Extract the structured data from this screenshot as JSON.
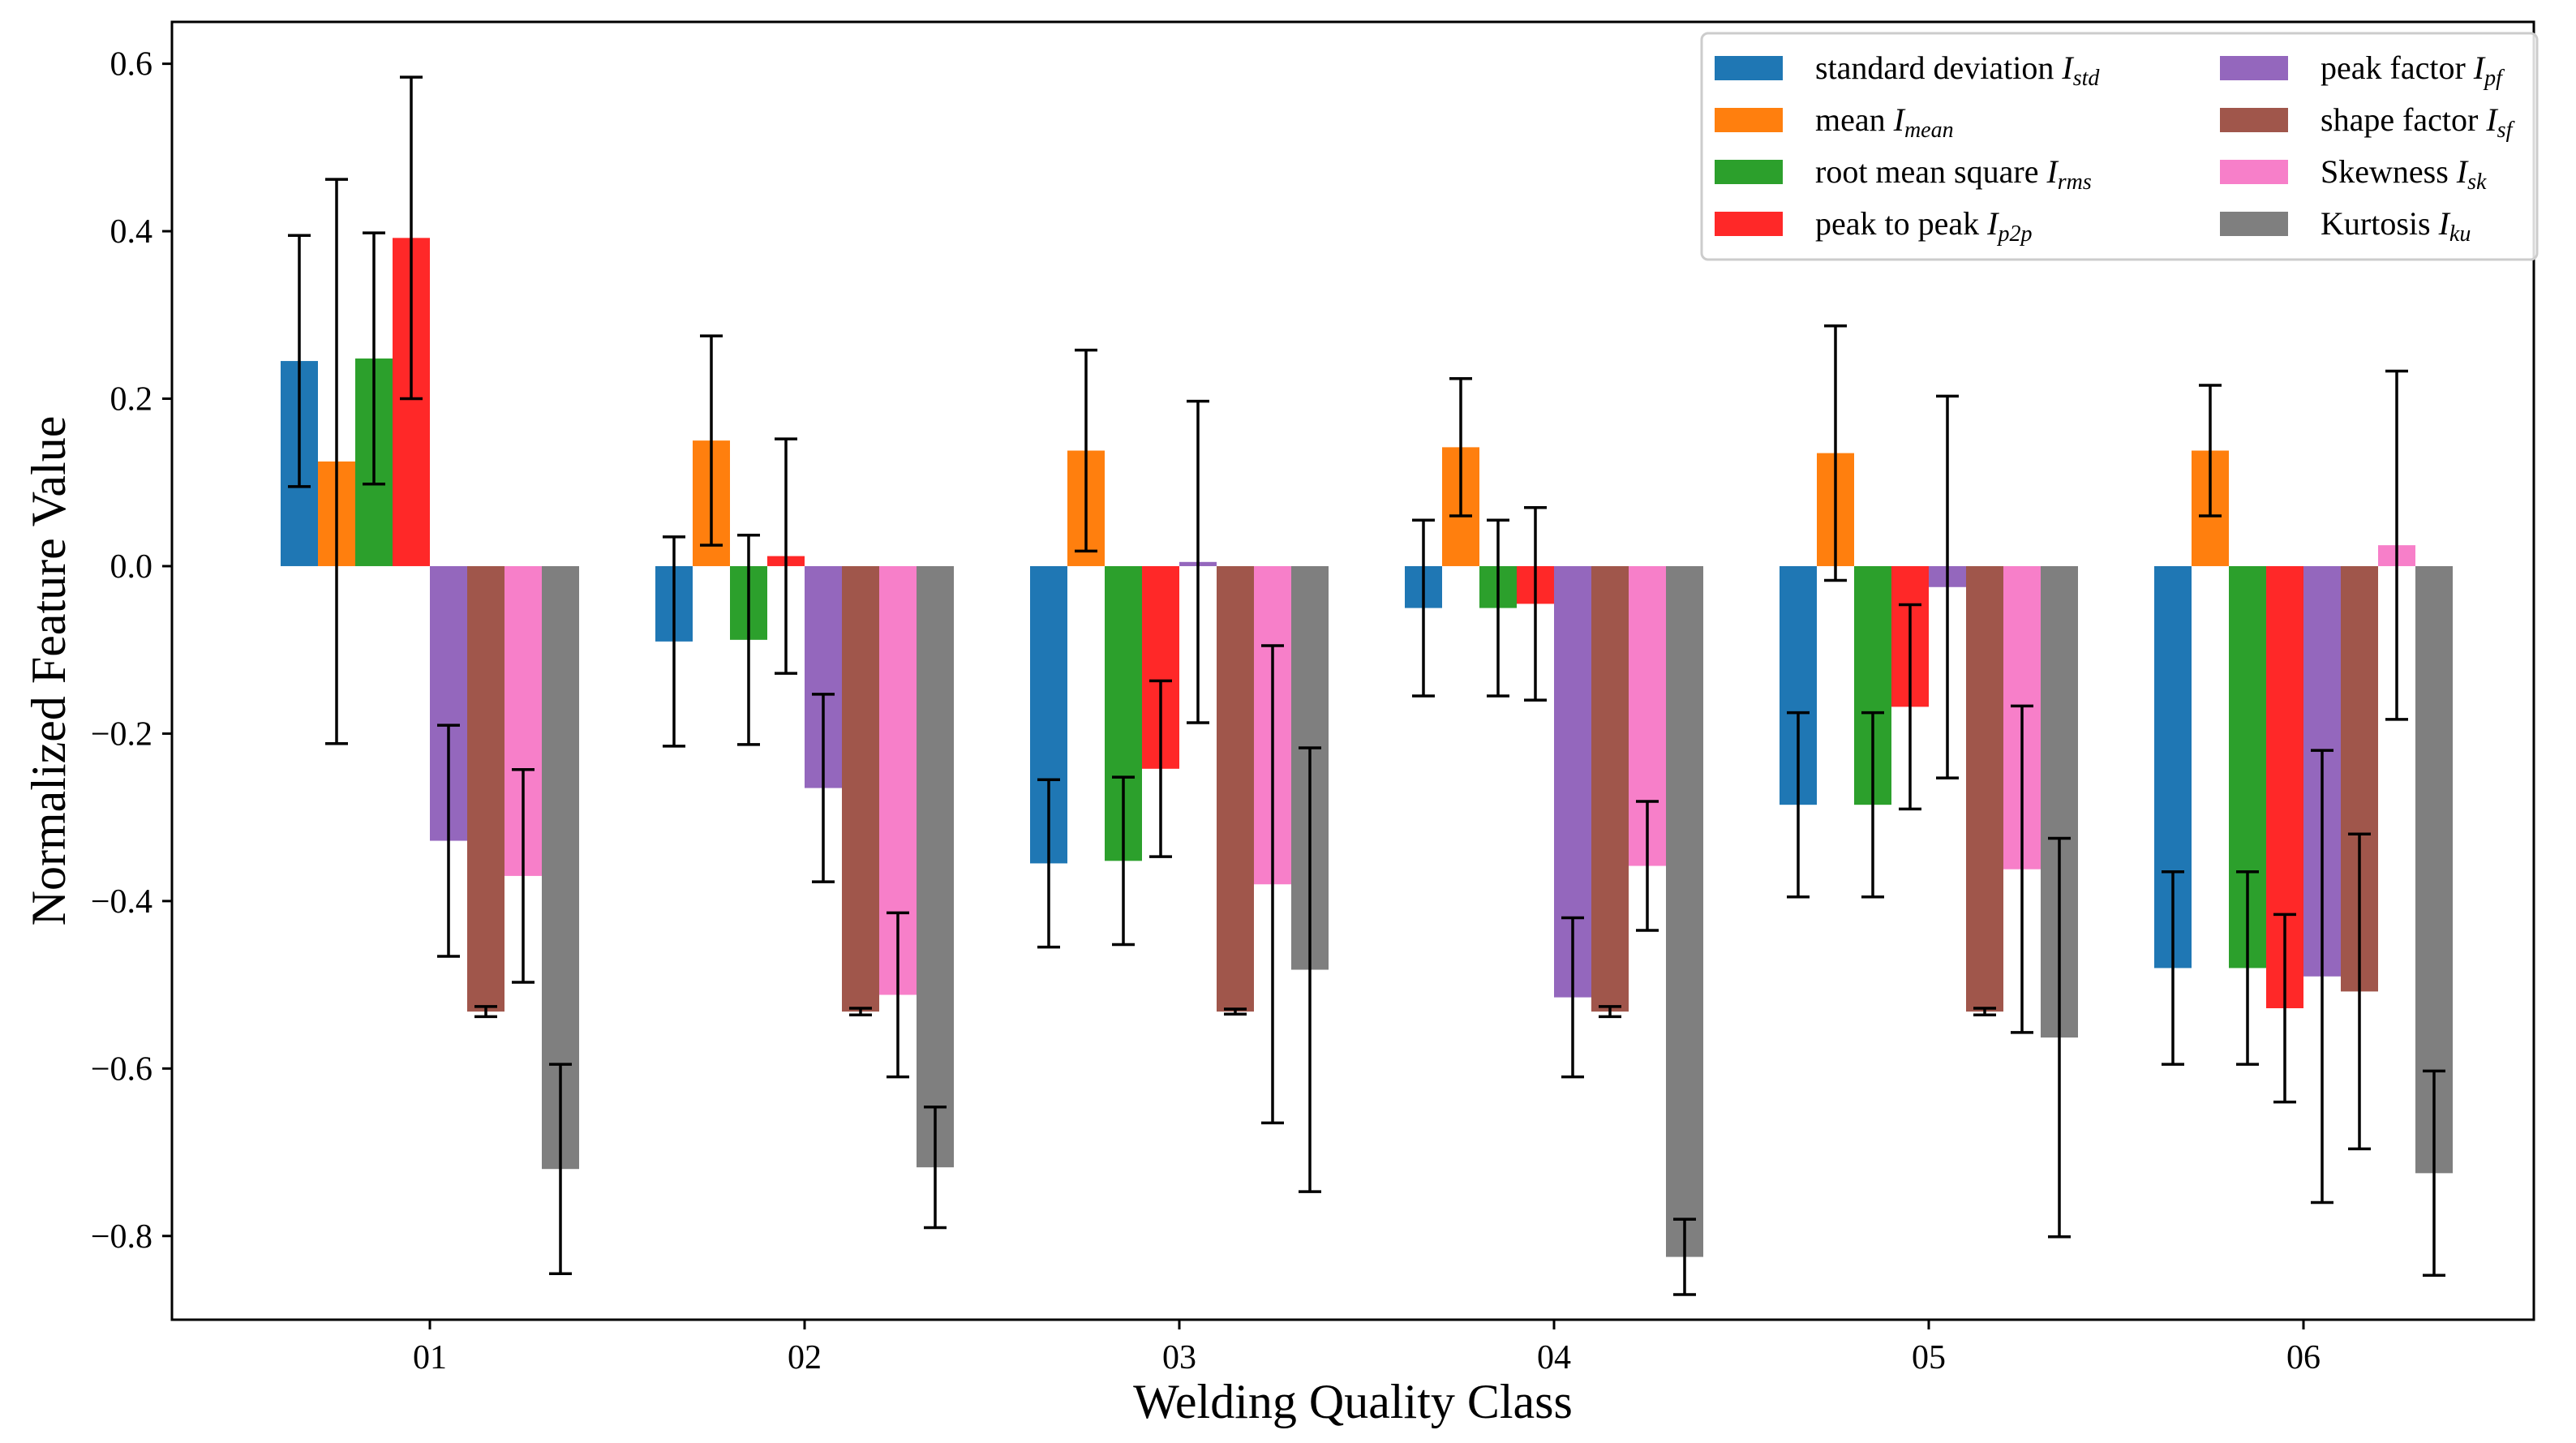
{
  "chart_data": {
    "type": "bar",
    "title": "",
    "xlabel": "Welding Quality Class",
    "ylabel": "Normalized Feature Value",
    "categories": [
      "01",
      "02",
      "03",
      "04",
      "05",
      "06"
    ],
    "ylim": [
      -0.9,
      0.65
    ],
    "yticks": [
      0.6,
      0.4,
      0.2,
      0.0,
      -0.2,
      -0.4,
      -0.6,
      -0.8
    ],
    "ytick_labels": [
      "0.6",
      "0.4",
      "0.2",
      "0.0",
      "−0.2",
      "−0.4",
      "−0.6",
      "−0.8"
    ],
    "grid": false,
    "legend_position": "top-right",
    "error_bars": true,
    "series": [
      {
        "name": "standard deviation",
        "symbol": "I",
        "subscript": "std",
        "color": "#1f77b4",
        "values": [
          0.245,
          -0.09,
          -0.355,
          -0.05,
          -0.285,
          -0.48
        ],
        "errors": [
          0.15,
          0.125,
          0.1,
          0.105,
          0.11,
          0.115
        ]
      },
      {
        "name": "mean",
        "symbol": "I",
        "subscript": "mean",
        "color": "#ff7f0e",
        "values": [
          0.125,
          0.15,
          0.138,
          0.142,
          0.135,
          0.138
        ],
        "errors": [
          0.337,
          0.125,
          0.12,
          0.082,
          0.152,
          0.078
        ]
      },
      {
        "name": "root mean square",
        "symbol": "I",
        "subscript": "rms",
        "color": "#2ca02c",
        "values": [
          0.248,
          -0.088,
          -0.352,
          -0.05,
          -0.285,
          -0.48
        ],
        "errors": [
          0.15,
          0.125,
          0.1,
          0.105,
          0.11,
          0.115
        ]
      },
      {
        "name": "peak to peak",
        "symbol": "I",
        "subscript": "p2p",
        "color": "#ff2828",
        "values": [
          0.392,
          0.012,
          -0.242,
          -0.045,
          -0.168,
          -0.528
        ],
        "errors": [
          0.192,
          0.14,
          0.105,
          0.115,
          0.122,
          0.112
        ]
      },
      {
        "name": "peak factor",
        "symbol": "I",
        "subscript": "pf",
        "color": "#9467bd",
        "values": [
          -0.328,
          -0.265,
          0.005,
          -0.515,
          -0.025,
          -0.49
        ],
        "errors": [
          0.138,
          0.112,
          0.192,
          0.095,
          0.228,
          0.27
        ]
      },
      {
        "name": "shape factor",
        "symbol": "I",
        "subscript": "sf",
        "color": "#a0564b",
        "values": [
          -0.532,
          -0.532,
          -0.532,
          -0.532,
          -0.532,
          -0.508
        ],
        "errors": [
          0.006,
          0.004,
          0.003,
          0.006,
          0.004,
          0.188
        ]
      },
      {
        "name": "Skewness",
        "symbol": "I",
        "subscript": "sk",
        "color": "#f77fc9",
        "values": [
          -0.37,
          -0.512,
          -0.38,
          -0.358,
          -0.362,
          0.025
        ],
        "errors": [
          0.127,
          0.098,
          0.285,
          0.077,
          0.195,
          0.208
        ]
      },
      {
        "name": "Kurtosis",
        "symbol": "I",
        "subscript": "ku",
        "color": "#7f7f7f",
        "values": [
          -0.72,
          -0.718,
          -0.482,
          -0.825,
          -0.563,
          -0.725
        ],
        "errors": [
          0.125,
          0.072,
          0.265,
          0.045,
          0.238,
          0.122
        ]
      }
    ]
  }
}
